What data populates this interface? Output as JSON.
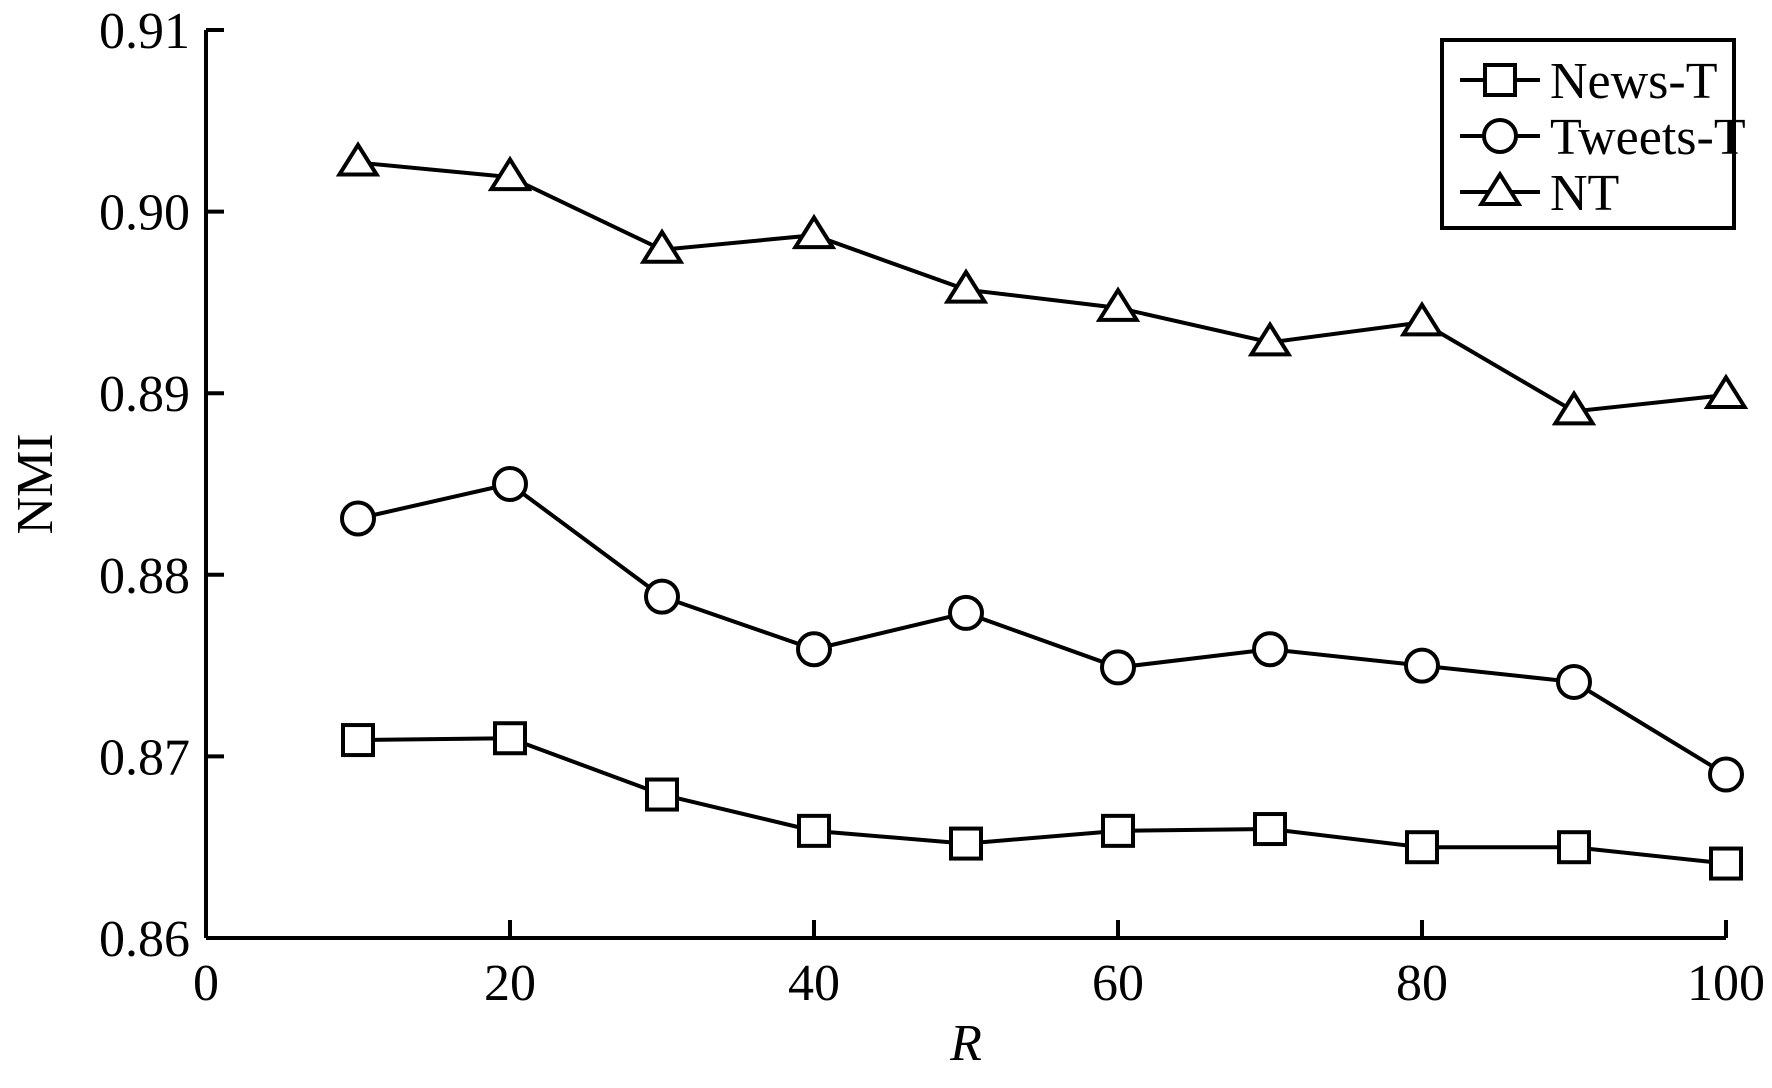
{
  "chart_data": {
    "type": "line",
    "title": "",
    "xlabel": "R",
    "ylabel": "NMI",
    "xlim": [
      0,
      100
    ],
    "ylim": [
      0.86,
      0.91
    ],
    "xticks": [
      0,
      20,
      40,
      60,
      80,
      100
    ],
    "xtick_labels": [
      "0",
      "20",
      "40",
      "60",
      "80",
      "100"
    ],
    "yticks": [
      0.86,
      0.87,
      0.88,
      0.89,
      0.9,
      0.91
    ],
    "ytick_labels": [
      "0.86",
      "0.87",
      "0.88",
      "0.89",
      "0.90",
      "0.91"
    ],
    "grid": false,
    "legend_position": "top-right",
    "x": [
      10,
      20,
      30,
      40,
      50,
      60,
      70,
      80,
      90,
      100
    ],
    "series": [
      {
        "name": "News-T",
        "marker": "square",
        "color": "#000000",
        "values": [
          0.8709,
          0.871,
          0.8679,
          0.8659,
          0.8652,
          0.8659,
          0.866,
          0.865,
          0.865,
          0.8641
        ]
      },
      {
        "name": "Tweets-T",
        "marker": "circle",
        "color": "#000000",
        "values": [
          0.8831,
          0.885,
          0.8788,
          0.8759,
          0.8779,
          0.8749,
          0.8759,
          0.875,
          0.8741,
          0.869
        ]
      },
      {
        "name": "NT",
        "marker": "triangle",
        "color": "#000000",
        "values": [
          0.9027,
          0.9019,
          0.8979,
          0.8987,
          0.8957,
          0.8947,
          0.8928,
          0.8939,
          0.889,
          0.8899
        ]
      }
    ]
  }
}
